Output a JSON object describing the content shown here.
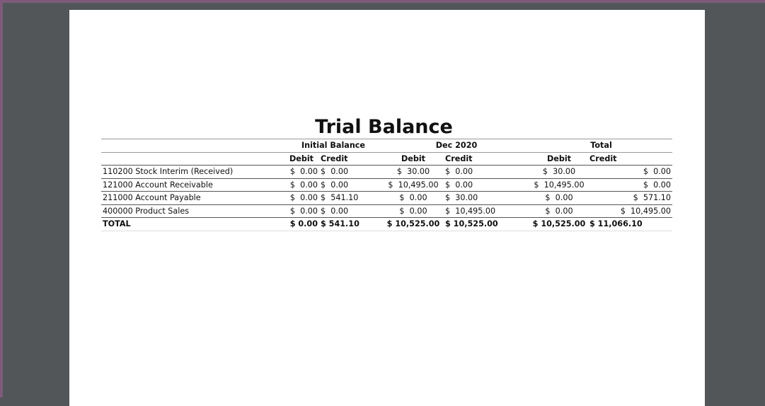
{
  "report": {
    "title": "Trial Balance",
    "groups": [
      "Initial Balance",
      "Dec 2020",
      "Total"
    ],
    "subcols": {
      "debit": "Debit",
      "credit": "Credit"
    },
    "rows": [
      {
        "account": "110200 Stock Interim (Received)",
        "ib_debit": "$  0.00",
        "ib_credit": "$  0.00",
        "p_debit": "$  30.00",
        "p_credit": "$  0.00",
        "t_debit": "$  30.00",
        "t_credit": "$  0.00"
      },
      {
        "account": "121000 Account Receivable",
        "ib_debit": "$  0.00",
        "ib_credit": "$  0.00",
        "p_debit": "$  10,495.00",
        "p_credit": "$  0.00",
        "t_debit": "$  10,495.00",
        "t_credit": "$  0.00"
      },
      {
        "account": "211000 Account Payable",
        "ib_debit": "$  0.00",
        "ib_credit": "$  541.10",
        "p_debit": "$  0.00",
        "p_credit": "$  30.00",
        "t_debit": "$  0.00",
        "t_credit": "$  571.10"
      },
      {
        "account": "400000 Product Sales",
        "ib_debit": "$  0.00",
        "ib_credit": "$  0.00",
        "p_debit": "$  0.00",
        "p_credit": "$  10,495.00",
        "t_debit": "$  0.00",
        "t_credit": "$  10,495.00"
      }
    ],
    "total": {
      "label": "TOTAL",
      "ib_debit": "$ 0.00",
      "ib_credit": "$ 541.10",
      "p_debit": "$ 10,525.00",
      "p_credit": "$ 10,525.00",
      "t_debit": "$ 10,525.00",
      "t_credit": "$ 11,066.10"
    }
  }
}
